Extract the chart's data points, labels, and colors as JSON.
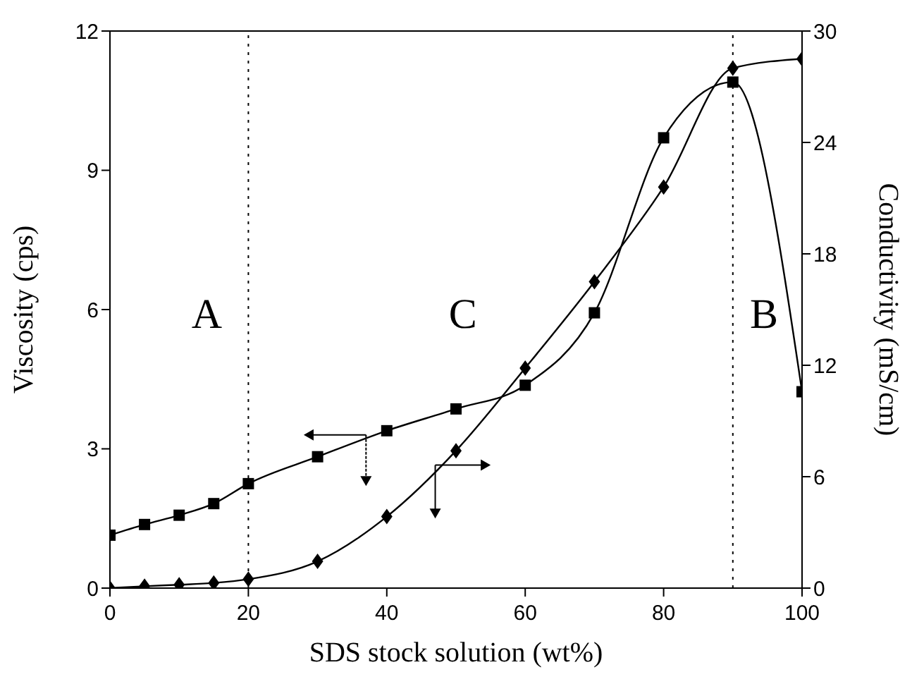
{
  "chart_data": {
    "type": "line",
    "xlabel": "SDS stock solution (wt%)",
    "ylabel": "Viscosity (cps)",
    "y2label": "Conductivity (mS/cm)",
    "x": [
      0,
      5,
      10,
      15,
      20,
      30,
      40,
      50,
      60,
      70,
      80,
      90,
      100
    ],
    "series": [
      {
        "color": "#000000",
        "marker": "square",
        "values": [
          1.14,
          1.37,
          1.57,
          1.82,
          2.25,
          2.83,
          3.39,
          3.86,
          4.37,
          5.93,
          9.7,
          10.9,
          4.23
        ]
      },
      {
        "color": "#000000",
        "marker": "diamond",
        "axis": "y2",
        "values": [
          0,
          0.1,
          0.18,
          0.28,
          0.48,
          1.44,
          3.85,
          7.4,
          11.85,
          16.5,
          21.6,
          28.0,
          28.5
        ]
      }
    ],
    "xlim": [
      0,
      100
    ],
    "xticks": [
      0,
      20,
      40,
      60,
      80,
      100
    ],
    "ylim": [
      0,
      12
    ],
    "yticks": [
      0,
      3,
      6,
      9,
      12
    ],
    "y2lim": [
      0,
      30
    ],
    "y2ticks": [
      0,
      6,
      12,
      18,
      24,
      30
    ],
    "ref_lines": [
      {
        "axis": "x",
        "value": 20,
        "line_style": "dotted"
      },
      {
        "axis": "x",
        "value": 90,
        "line_style": "dotted"
      }
    ],
    "annotations": [
      "A",
      "C",
      "B"
    ],
    "line_style": "solid"
  }
}
